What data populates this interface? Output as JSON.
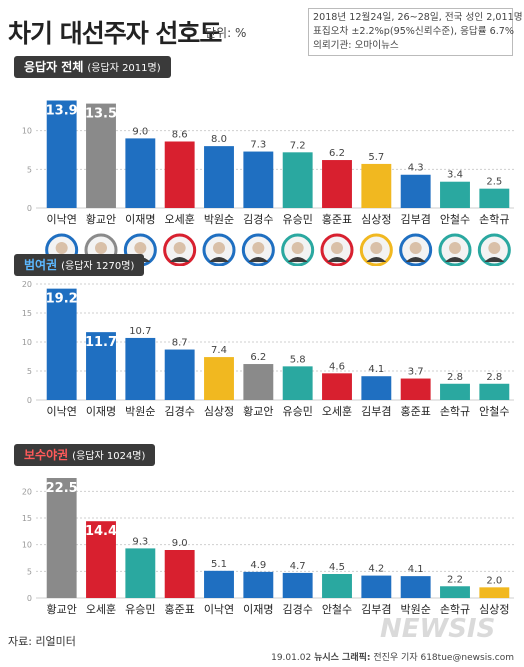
{
  "title": "차기 대선주자 선호도",
  "unit": "단위: %",
  "info": {
    "line1": "2018년 12월24일, 26~28일, 전국 성인 2,011명",
    "line2": "표집오차 ±2.2%p(95%신뢰수준), 응답률 6.7%",
    "line3": "의뢰기관: 오마이뉴스"
  },
  "colors": {
    "blue": "#1f6fc1",
    "gray": "#8a8a8a",
    "red": "#d8202f",
    "teal": "#2aa8a0",
    "yellow": "#f1b820"
  },
  "chart_data": [
    {
      "type": "bar",
      "title": "응답자 전체",
      "subtitle": "(응답자 2011명)",
      "categories": [
        "이낙연",
        "황교안",
        "이재명",
        "오세훈",
        "박원순",
        "김경수",
        "유승민",
        "홍준표",
        "심상정",
        "김부겸",
        "안철수",
        "손학규"
      ],
      "values": [
        13.9,
        13.5,
        9.0,
        8.6,
        8.0,
        7.3,
        7.2,
        6.2,
        5.7,
        4.3,
        3.4,
        2.5
      ],
      "labels": [
        "13.9",
        "13.5",
        "9.0",
        "8.6",
        "8.0",
        "7.3",
        "7.2",
        "6.2",
        "5.7",
        "4.3",
        "3.4",
        "2.5"
      ],
      "colors": [
        "#1f6fc1",
        "#8a8a8a",
        "#1f6fc1",
        "#d8202f",
        "#1f6fc1",
        "#1f6fc1",
        "#2aa8a0",
        "#d8202f",
        "#f1b820",
        "#1f6fc1",
        "#2aa8a0",
        "#2aa8a0"
      ],
      "yticks": [
        0,
        5,
        10
      ],
      "ylim": [
        0,
        15
      ],
      "grid": true
    },
    {
      "type": "bar",
      "title": "범여권",
      "subtitle": "(응답자 1270명)",
      "categories": [
        "이낙연",
        "이재명",
        "박원순",
        "김경수",
        "심상정",
        "황교안",
        "유승민",
        "오세훈",
        "김부겸",
        "홍준표",
        "손학규",
        "안철수"
      ],
      "values": [
        19.2,
        11.7,
        10.7,
        8.7,
        7.4,
        6.2,
        5.8,
        4.6,
        4.1,
        3.7,
        2.8,
        2.8
      ],
      "labels": [
        "19.2",
        "11.7",
        "10.7",
        "8.7",
        "7.4",
        "6.2",
        "5.8",
        "4.6",
        "4.1",
        "3.7",
        "2.8",
        "2.8"
      ],
      "colors": [
        "#1f6fc1",
        "#1f6fc1",
        "#1f6fc1",
        "#1f6fc1",
        "#f1b820",
        "#8a8a8a",
        "#2aa8a0",
        "#d8202f",
        "#1f6fc1",
        "#d8202f",
        "#2aa8a0",
        "#2aa8a0"
      ],
      "yticks": [
        0,
        5,
        10,
        15,
        20
      ],
      "ylim": [
        0,
        20
      ],
      "grid": true
    },
    {
      "type": "bar",
      "title": "보수야권",
      "subtitle": "(응답자 1024명)",
      "categories": [
        "황교안",
        "오세훈",
        "유승민",
        "홍준표",
        "이낙연",
        "이재명",
        "김경수",
        "안철수",
        "김부겸",
        "박원순",
        "손학규",
        "심상정"
      ],
      "values": [
        22.5,
        14.4,
        9.3,
        9.0,
        5.1,
        4.9,
        4.7,
        4.5,
        4.2,
        4.1,
        2.2,
        2.0
      ],
      "labels": [
        "22.5",
        "14.4",
        "9.3",
        "9.0",
        "5.1",
        "4.9",
        "4.7",
        "4.5",
        "4.2",
        "4.1",
        "2.2",
        "2.0"
      ],
      "colors": [
        "#8a8a8a",
        "#d8202f",
        "#2aa8a0",
        "#d8202f",
        "#1f6fc1",
        "#1f6fc1",
        "#1f6fc1",
        "#2aa8a0",
        "#1f6fc1",
        "#1f6fc1",
        "#2aa8a0",
        "#f1b820"
      ],
      "yticks": [
        0,
        5,
        10,
        15,
        20
      ],
      "ylim": [
        0,
        22.5
      ],
      "grid": true
    }
  ],
  "source": "자료: 리얼미터",
  "footer": {
    "date": "19.01.02",
    "agency": "뉴시스 그래픽:",
    "author": "전진우 기자 618tue@newsis.com"
  },
  "watermark": "NEWSIS"
}
